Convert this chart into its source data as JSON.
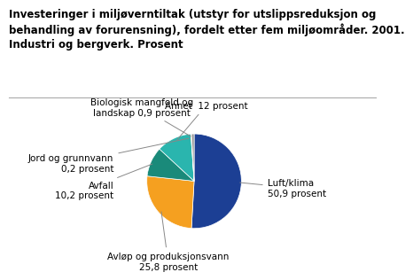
{
  "title_line1": "Investeringer i miljøverntiltak (utstyr for utslippsreduksjon og",
  "title_line2": "behandling av forurensning), fordelt etter fem miljøområder. 2001.",
  "title_line3": "Industri og bergverk. Prosent",
  "slices": [
    {
      "label": "Luft/klima\n50,9 prosent",
      "value": 50.9,
      "color": "#1c3f94"
    },
    {
      "label": "Avløp og produksjonsvann\n25,8 prosent",
      "value": 25.8,
      "color": "#f5a020"
    },
    {
      "label": "Avfall\n10,2 prosent",
      "value": 10.2,
      "color": "#1a8a7a"
    },
    {
      "label": "Annet  12 prosent",
      "value": 12.0,
      "color": "#2ab5ae"
    },
    {
      "label": "Jord og grunnvann\n0,2 prosent",
      "value": 0.2,
      "color": "#e07c10"
    },
    {
      "label": "Biologisk mangfold og\nlandskap 0,9 prosent",
      "value": 0.9,
      "color": "#999999"
    }
  ],
  "background_color": "#ffffff",
  "title_fontsize": 8.5,
  "label_fontsize": 7.5
}
